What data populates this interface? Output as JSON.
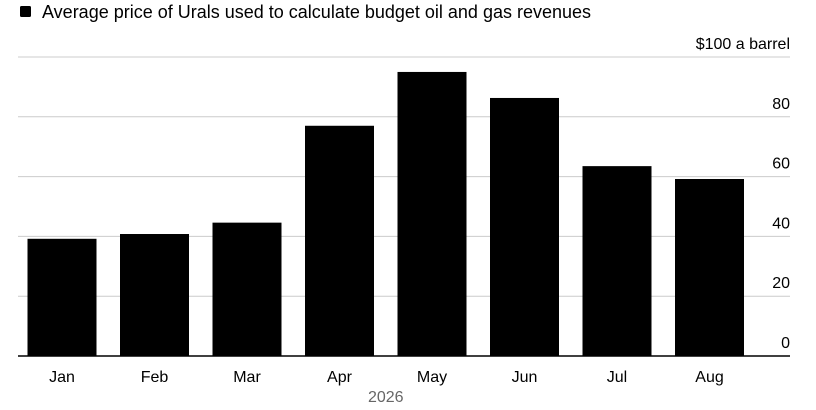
{
  "chart_data": {
    "type": "bar",
    "title": "",
    "legend": [
      {
        "name": "Average price of Urals used to calculate budget oil and gas revenues",
        "color": "#000000"
      }
    ],
    "categories": [
      "Jan",
      "Feb",
      "Mar",
      "Apr",
      "May",
      "Jun",
      "Jul",
      "Aug"
    ],
    "series": [
      {
        "name": "Average price of Urals used to calculate budget oil and gas revenues",
        "values": [
          39.2,
          40.8,
          44.6,
          77.0,
          95.0,
          86.3,
          63.5,
          59.2
        ]
      }
    ],
    "x_sublabel": "2026",
    "ylim": [
      0,
      100
    ],
    "yticks": [
      0,
      20,
      40,
      60,
      80,
      100
    ],
    "ytick_labels": [
      "0",
      "20",
      "40",
      "60",
      "80",
      "$100 a barrel"
    ],
    "grid": true,
    "y_axis_side": "right",
    "colors": {
      "bar": "#000000",
      "grid": "#cccccc",
      "axis": "#000000",
      "text": "#000000",
      "sublabel": "#666666"
    }
  }
}
